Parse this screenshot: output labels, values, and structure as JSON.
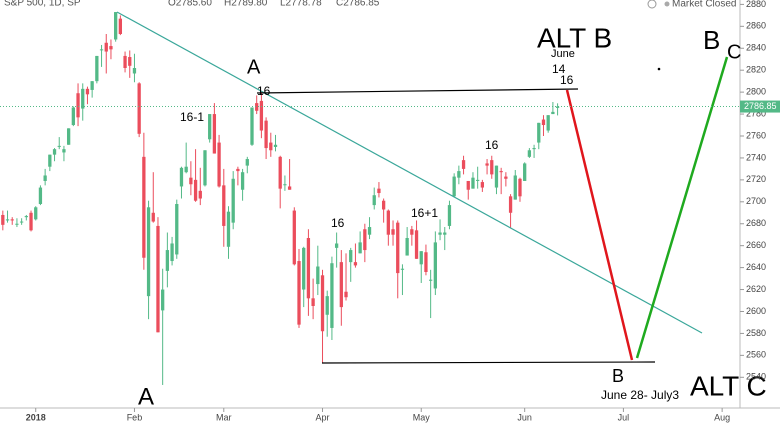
{
  "chart_data": {
    "type": "candlestick",
    "title": "S&P 500, 1D, SP",
    "ohlc_legend": [
      "O2785.60",
      "H2789.80",
      "L2778.78",
      "C2786.85"
    ],
    "status": "Market Closed",
    "up_color": "#53b987",
    "down_color": "#eb4d5c",
    "last_price": 2786.85,
    "ylim": [
      2512,
      2884
    ],
    "yticks": [
      2540,
      2560,
      2580,
      2600,
      2620,
      2640,
      2660,
      2680,
      2700,
      2720,
      2740,
      2760,
      2780,
      2800,
      2820,
      2840,
      2860,
      2880
    ],
    "xlim": [
      -0.6,
      156.8
    ],
    "xticks": [
      {
        "value": 7,
        "label": "2018"
      },
      {
        "value": 28,
        "label": "Feb"
      },
      {
        "value": 47,
        "label": "Mar"
      },
      {
        "value": 68,
        "label": "Apr"
      },
      {
        "value": 89,
        "label": "May"
      },
      {
        "value": 111,
        "label": "Jun"
      },
      {
        "value": 132,
        "label": "Jul"
      },
      {
        "value": 153,
        "label": "Aug"
      }
    ],
    "x": [
      0,
      1,
      2,
      3,
      4,
      5,
      6,
      7,
      8,
      9,
      10,
      11,
      12,
      13,
      14,
      15,
      16,
      17,
      18,
      19,
      20,
      21,
      22,
      23,
      24,
      25,
      26,
      27,
      28,
      29,
      30,
      31,
      32,
      33,
      34,
      35,
      36,
      37,
      38,
      39,
      40,
      41,
      42,
      43,
      44,
      45,
      46,
      47,
      48,
      49,
      50,
      51,
      52,
      53,
      54,
      55,
      56,
      57,
      58,
      59,
      60,
      61,
      62,
      63,
      64,
      65,
      66,
      67,
      68,
      69,
      70,
      71,
      72,
      73,
      74,
      75,
      76,
      77,
      78,
      79,
      80,
      81,
      82,
      83,
      84,
      85,
      86,
      87,
      88,
      89,
      90,
      91,
      92,
      93,
      94,
      95,
      96,
      97,
      98,
      99,
      100,
      101,
      102,
      103,
      104,
      105,
      106,
      107,
      108,
      109,
      110,
      111,
      112,
      113,
      114,
      115,
      116,
      117,
      118
    ],
    "ohlc": [
      [
        2688,
        2692,
        2674,
        2679
      ],
      [
        2683,
        2692,
        2681,
        2684
      ],
      [
        2684,
        2686,
        2679,
        2683
      ],
      [
        2680,
        2685,
        2677,
        2680
      ],
      [
        2682,
        2685,
        2679,
        2682
      ],
      [
        2686,
        2688,
        2683,
        2687
      ],
      [
        2690,
        2692,
        2673,
        2674
      ],
      [
        2684,
        2696,
        2683,
        2695
      ],
      [
        2698,
        2715,
        2697,
        2713
      ],
      [
        2719,
        2730,
        2715,
        2724
      ],
      [
        2732,
        2743,
        2728,
        2743
      ],
      [
        2743,
        2749,
        2737,
        2748
      ],
      [
        2751,
        2759,
        2748,
        2751
      ],
      [
        2745,
        2751,
        2737,
        2748
      ],
      [
        2752,
        2767,
        2752,
        2767
      ],
      [
        2770,
        2787,
        2769,
        2786
      ],
      [
        2799,
        2808,
        2769,
        2777
      ],
      [
        2785,
        2808,
        2774,
        2803
      ],
      [
        2803,
        2805,
        2789,
        2798
      ],
      [
        2802,
        2810,
        2795,
        2810
      ],
      [
        2810,
        2833,
        2808,
        2833
      ],
      [
        2839,
        2843,
        2823,
        2839
      ],
      [
        2845,
        2853,
        2817,
        2837
      ],
      [
        2842,
        2848,
        2830,
        2839
      ],
      [
        2848,
        2873,
        2846,
        2873
      ],
      [
        2867,
        2870,
        2852,
        2853
      ],
      [
        2833,
        2837,
        2818,
        2822
      ],
      [
        2832,
        2838,
        2813,
        2824
      ],
      [
        2817,
        2835,
        2809,
        2822
      ],
      [
        2808,
        2809,
        2759,
        2762
      ],
      [
        2741,
        2763,
        2638,
        2649
      ],
      [
        2614,
        2701,
        2593,
        2695
      ],
      [
        2690,
        2727,
        2681,
        2682
      ],
      [
        2678,
        2686,
        2581,
        2581
      ],
      [
        2601,
        2639,
        2533,
        2620
      ],
      [
        2637,
        2672,
        2622,
        2656
      ],
      [
        2646,
        2668,
        2642,
        2662
      ],
      [
        2652,
        2702,
        2648,
        2698
      ],
      [
        2714,
        2732,
        2703,
        2731
      ],
      [
        2727,
        2754,
        2726,
        2732
      ],
      [
        2722,
        2737,
        2706,
        2716
      ],
      [
        2720,
        2748,
        2700,
        2701
      ],
      [
        2710,
        2731,
        2697,
        2703
      ],
      [
        2715,
        2747,
        2714,
        2747
      ],
      [
        2757,
        2780,
        2754,
        2780
      ],
      [
        2780,
        2790,
        2744,
        2744
      ],
      [
        2754,
        2761,
        2713,
        2714
      ],
      [
        2715,
        2730,
        2659,
        2678
      ],
      [
        2659,
        2696,
        2648,
        2691
      ],
      [
        2681,
        2728,
        2675,
        2721
      ],
      [
        2730,
        2732,
        2715,
        2728
      ],
      [
        2711,
        2730,
        2701,
        2727
      ],
      [
        2733,
        2741,
        2726,
        2739
      ],
      [
        2752,
        2786,
        2751,
        2786
      ],
      [
        2790,
        2797,
        2780,
        2783
      ],
      [
        2792,
        2801,
        2758,
        2765
      ],
      [
        2774,
        2777,
        2739,
        2749
      ],
      [
        2754,
        2763,
        2741,
        2747
      ],
      [
        2750,
        2761,
        2746,
        2752
      ],
      [
        2741,
        2742,
        2694,
        2712
      ],
      [
        2716,
        2724,
        2710,
        2716
      ],
      [
        2714,
        2739,
        2711,
        2711
      ],
      [
        2692,
        2695,
        2642,
        2643
      ],
      [
        2646,
        2657,
        2585,
        2588
      ],
      [
        2620,
        2659,
        2604,
        2658
      ],
      [
        2667,
        2675,
        2596,
        2612
      ],
      [
        2612,
        2630,
        2593,
        2605
      ],
      [
        2625,
        2660,
        2615,
        2641
      ],
      [
        2633,
        2638,
        2553,
        2582
      ],
      [
        2597,
        2619,
        2577,
        2614
      ],
      [
        2585,
        2650,
        2574,
        2644
      ],
      [
        2658,
        2672,
        2640,
        2662
      ],
      [
        2645,
        2656,
        2587,
        2604
      ],
      [
        2618,
        2653,
        2610,
        2613
      ],
      [
        2645,
        2658,
        2627,
        2656
      ],
      [
        2645,
        2662,
        2640,
        2642
      ],
      [
        2653,
        2673,
        2653,
        2663
      ],
      [
        2675,
        2680,
        2645,
        2656
      ],
      [
        2670,
        2686,
        2666,
        2677
      ],
      [
        2697,
        2713,
        2693,
        2706
      ],
      [
        2712,
        2718,
        2704,
        2708
      ],
      [
        2701,
        2703,
        2681,
        2693
      ],
      [
        2692,
        2693,
        2660,
        2670
      ],
      [
        2675,
        2683,
        2660,
        2670
      ],
      [
        2681,
        2683,
        2612,
        2635
      ],
      [
        2638,
        2643,
        2615,
        2639
      ],
      [
        2651,
        2677,
        2651,
        2667
      ],
      [
        2675,
        2678,
        2660,
        2670
      ],
      [
        2674,
        2683,
        2648,
        2648
      ],
      [
        2643,
        2655,
        2626,
        2655
      ],
      [
        2654,
        2661,
        2633,
        2636
      ],
      [
        2628,
        2638,
        2594,
        2629
      ],
      [
        2621,
        2673,
        2615,
        2663
      ],
      [
        2670,
        2684,
        2665,
        2672
      ],
      [
        2670,
        2677,
        2656,
        2672
      ],
      [
        2678,
        2701,
        2675,
        2697
      ],
      [
        2705,
        2726,
        2704,
        2723
      ],
      [
        2722,
        2733,
        2716,
        2728
      ],
      [
        2738,
        2742,
        2725,
        2730
      ],
      [
        2719,
        2719,
        2702,
        2711
      ],
      [
        2712,
        2727,
        2712,
        2722
      ],
      [
        2719,
        2732,
        2712,
        2720
      ],
      [
        2718,
        2720,
        2709,
        2713
      ],
      [
        2735,
        2739,
        2725,
        2733
      ],
      [
        2738,
        2742,
        2721,
        2725
      ],
      [
        2713,
        2733,
        2707,
        2733
      ],
      [
        2728,
        2731,
        2707,
        2727
      ],
      [
        2723,
        2727,
        2714,
        2721
      ],
      [
        2705,
        2707,
        2676,
        2690
      ],
      [
        2702,
        2729,
        2702,
        2724
      ],
      [
        2721,
        2722,
        2700,
        2705
      ],
      [
        2719,
        2736,
        2719,
        2735
      ],
      [
        2741,
        2749,
        2740,
        2747
      ],
      [
        2748,
        2752,
        2740,
        2749
      ],
      [
        2754,
        2772,
        2748,
        2772
      ],
      [
        2775,
        2779,
        2760,
        2770
      ],
      [
        2765,
        2779,
        2763,
        2779
      ],
      [
        2780,
        2791,
        2780,
        2782
      ],
      [
        2785.6,
        2789.8,
        2778.78,
        2786.85
      ]
    ],
    "annotations": [
      "A",
      "16",
      "16-1",
      "16",
      "16+1",
      "16",
      "ALT B",
      "June",
      "14",
      "16",
      "B",
      "C",
      "B",
      "June 28- July3",
      "ALT C",
      "A"
    ]
  }
}
